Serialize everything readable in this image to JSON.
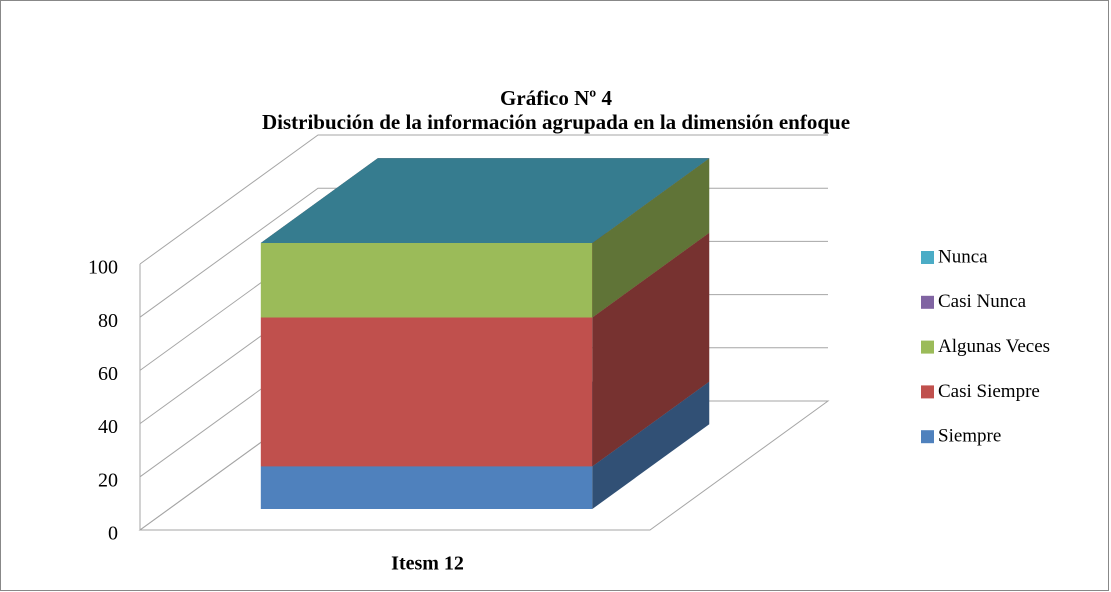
{
  "chart_data": {
    "type": "bar3d_stacked",
    "title": "Gráfico Nº 4",
    "subtitle": "Distribución de la información agrupada en la dimensión enfoque",
    "categories": [
      "Itesm 12"
    ],
    "series": [
      {
        "name": "Siempre",
        "color": "#4f81bd",
        "values": [
          16
        ]
      },
      {
        "name": "Casi Siempre",
        "color": "#c0504d",
        "values": [
          56
        ]
      },
      {
        "name": "Algunas Veces",
        "color": "#9bbb59",
        "values": [
          28
        ]
      },
      {
        "name": "Casi Nunca",
        "color": "#8064a2",
        "values": [
          0
        ]
      },
      {
        "name": "Nunca",
        "color": "#4bacc6",
        "values": [
          0
        ]
      }
    ],
    "ylim": [
      0,
      100
    ],
    "yticks": [
      0,
      20,
      40,
      60,
      80,
      100
    ],
    "grid": true,
    "legend": "right"
  }
}
